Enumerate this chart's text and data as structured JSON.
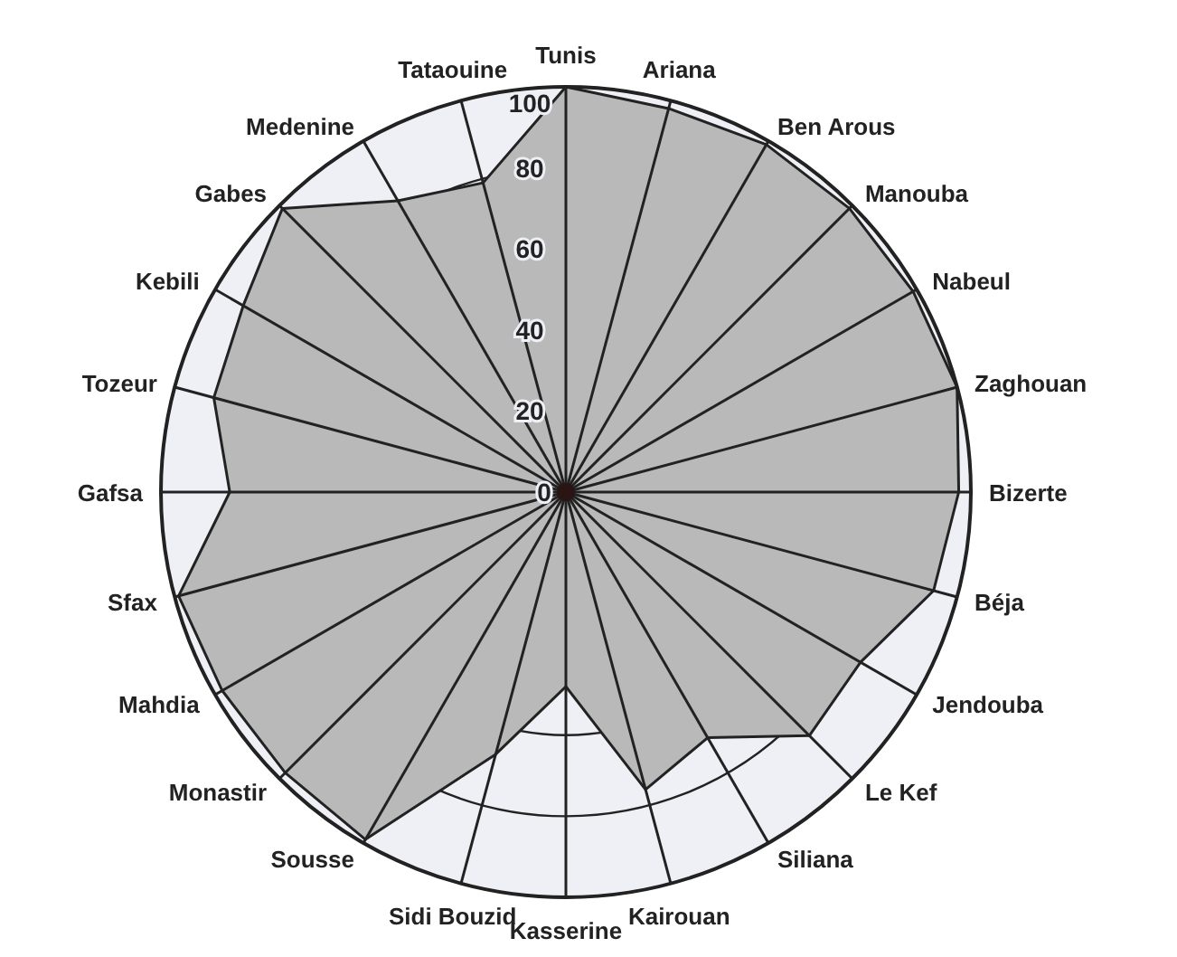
{
  "chart_data": {
    "type": "radar",
    "categories": [
      "Tunis",
      "Ariana",
      "Ben Arous",
      "Manouba",
      "Nabeul",
      "Zaghouan",
      "Bizerte",
      "Béja",
      "Jendouba",
      "Le Kef",
      "Siliana",
      "Kairouan",
      "Kasserine",
      "Sidi Bouzid",
      "Sousse",
      "Monastir",
      "Mahdia",
      "Sfax",
      "Gafsa",
      "Tozeur",
      "Kebili",
      "Gabes",
      "Medenine",
      "Tataouine"
    ],
    "series": [
      {
        "color": "#b9b9b9",
        "values": [
          100,
          98,
          99,
          99,
          99,
          100,
          97,
          94,
          84,
          85,
          70,
          76,
          48,
          67,
          99,
          98,
          98,
          99,
          83,
          90,
          92,
          99,
          83,
          79
        ]
      }
    ],
    "ylim": [
      0,
      100
    ],
    "yticks": [
      0,
      20,
      40,
      60,
      80,
      100
    ],
    "grid": true
  }
}
